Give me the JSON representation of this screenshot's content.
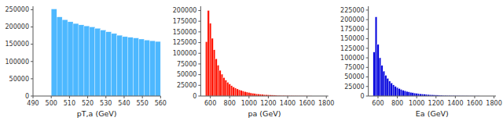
{
  "chart_data": [
    {
      "type": "histogram",
      "color": "#4db8ff",
      "xlabel": "pT,a (GeV)",
      "xlim": [
        490,
        560
      ],
      "ylim": [
        0,
        260000
      ],
      "xticks": [
        490,
        500,
        510,
        520,
        530,
        540,
        550,
        560
      ],
      "yticks": [
        0,
        50000,
        100000,
        150000,
        200000,
        250000
      ],
      "bins": [
        500,
        503,
        506,
        509,
        512,
        515,
        518,
        521,
        524,
        527,
        530,
        533,
        536,
        539,
        542,
        545,
        548,
        551,
        554,
        557,
        560
      ],
      "values": [
        252000,
        229000,
        221000,
        215000,
        210000,
        206000,
        203000,
        200000,
        196000,
        191000,
        186000,
        181000,
        176000,
        172000,
        170000,
        168000,
        165000,
        162000,
        160000,
        158000
      ]
    },
    {
      "type": "histogram",
      "color": "#ff1100",
      "xlabel": "pa (GeV)",
      "xlim": [
        500,
        1820
      ],
      "ylim": [
        0,
        210000
      ],
      "xticks": [
        600,
        800,
        1000,
        1200,
        1400,
        1600,
        1800
      ],
      "yticks": [
        0,
        25000,
        50000,
        75000,
        100000,
        125000,
        150000,
        175000,
        200000
      ],
      "bins": [
        550,
        570,
        590,
        610,
        630,
        650,
        670,
        690,
        710,
        730,
        750,
        770,
        790,
        810,
        830,
        850,
        870,
        890,
        910,
        930,
        950,
        970,
        990,
        1010,
        1030,
        1050,
        1070,
        1090,
        1110,
        1130,
        1150,
        1170,
        1190,
        1210,
        1230,
        1250,
        1270,
        1290,
        1310,
        1330,
        1350,
        1370,
        1390,
        1410,
        1430,
        1450,
        1470,
        1490,
        1510,
        1530,
        1550,
        1570,
        1590,
        1610,
        1630,
        1650
      ],
      "values": [
        127000,
        200000,
        170000,
        135000,
        108000,
        87000,
        72000,
        60000,
        51000,
        43000,
        37000,
        32000,
        28000,
        24000,
        21000,
        18500,
        16500,
        14500,
        13000,
        11500,
        10200,
        9100,
        8100,
        7200,
        6400,
        5700,
        5100,
        4600,
        4100,
        3700,
        3300,
        3000,
        2700,
        2400,
        2200,
        2000,
        1800,
        1600,
        1450,
        1300,
        1170,
        1050,
        950,
        850,
        770,
        700,
        630,
        570,
        510,
        460,
        420,
        380,
        340,
        310,
        280
      ]
    },
    {
      "type": "histogram",
      "color": "#0000dd",
      "xlabel": "Ea (GeV)",
      "xlim": [
        500,
        1820
      ],
      "ylim": [
        0,
        235000
      ],
      "xticks": [
        600,
        800,
        1000,
        1200,
        1400,
        1600,
        1800
      ],
      "yticks": [
        0,
        25000,
        50000,
        75000,
        100000,
        125000,
        150000,
        175000,
        200000,
        225000
      ],
      "bins": [
        550,
        570,
        590,
        610,
        630,
        650,
        670,
        690,
        710,
        730,
        750,
        770,
        790,
        810,
        830,
        850,
        870,
        890,
        910,
        930,
        950,
        970,
        990,
        1010,
        1030,
        1050,
        1070,
        1090,
        1110,
        1130,
        1150,
        1170,
        1190,
        1210,
        1230,
        1250,
        1270,
        1290,
        1310,
        1330,
        1350,
        1370,
        1390,
        1410,
        1430,
        1450,
        1470,
        1490,
        1510,
        1530,
        1550,
        1570,
        1590,
        1610,
        1630,
        1650
      ],
      "values": [
        115000,
        207000,
        135000,
        100000,
        80000,
        65000,
        54000,
        46000,
        39000,
        34000,
        29000,
        25000,
        22000,
        19500,
        17000,
        15000,
        13500,
        12000,
        10700,
        9600,
        8600,
        7700,
        6900,
        6200,
        5600,
        5100,
        4600,
        4200,
        3800,
        3400,
        3100,
        2800,
        2500,
        2300,
        2100,
        1900,
        1700,
        1550,
        1400,
        1270,
        1150,
        1050,
        950,
        860,
        780,
        700,
        640,
        580,
        530,
        480,
        435,
        395,
        360,
        325,
        300
      ]
    }
  ]
}
